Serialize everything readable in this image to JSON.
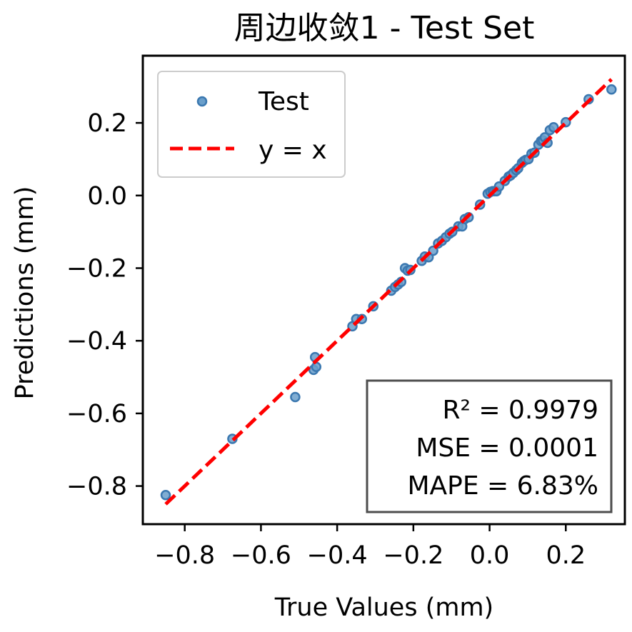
{
  "colors": {
    "points_fill": "#6a9fcb",
    "points_stroke": "#3b78b0",
    "reference_line": "#ff0000",
    "axes": "#000000",
    "legend_border": "#cccccc",
    "stats_border": "#4d4d4d"
  },
  "chart_data": {
    "type": "scatter",
    "title": "周边收敛1 - Test Set",
    "xlabel": "True Values (mm)",
    "ylabel": "Predictions (mm)",
    "xlim": [
      -0.91,
      0.355
    ],
    "ylim": [
      -0.905,
      0.385
    ],
    "xticks": [
      {
        "value": -0.8,
        "label": "−0.8"
      },
      {
        "value": -0.6,
        "label": "−0.6"
      },
      {
        "value": -0.4,
        "label": "−0.4"
      },
      {
        "value": -0.2,
        "label": "−0.2"
      },
      {
        "value": 0.0,
        "label": "0.0"
      },
      {
        "value": 0.2,
        "label": "0.2"
      }
    ],
    "yticks": [
      {
        "value": -0.8,
        "label": "−0.8"
      },
      {
        "value": -0.6,
        "label": "−0.6"
      },
      {
        "value": -0.4,
        "label": "−0.4"
      },
      {
        "value": -0.2,
        "label": "−0.2"
      },
      {
        "value": 0.0,
        "label": "0.0"
      },
      {
        "value": 0.2,
        "label": "0.2"
      }
    ],
    "grid": false,
    "legend": {
      "placement": "top-left",
      "entries": [
        {
          "label": "Test",
          "marker": "circle"
        },
        {
          "label": "y = x",
          "marker": "dashed-line"
        }
      ]
    },
    "reference_line": {
      "label": "y = x",
      "x": [
        -0.85,
        0.32
      ],
      "y": [
        -0.85,
        0.32
      ],
      "style": "dashed"
    },
    "series": [
      {
        "name": "Test",
        "points": [
          {
            "x": -0.85,
            "y": -0.825
          },
          {
            "x": -0.675,
            "y": -0.67
          },
          {
            "x": -0.51,
            "y": -0.555
          },
          {
            "x": -0.462,
            "y": -0.48
          },
          {
            "x": -0.458,
            "y": -0.445
          },
          {
            "x": -0.455,
            "y": -0.472
          },
          {
            "x": -0.36,
            "y": -0.36
          },
          {
            "x": -0.35,
            "y": -0.34
          },
          {
            "x": -0.335,
            "y": -0.34
          },
          {
            "x": -0.305,
            "y": -0.305
          },
          {
            "x": -0.258,
            "y": -0.262
          },
          {
            "x": -0.248,
            "y": -0.252
          },
          {
            "x": -0.24,
            "y": -0.245
          },
          {
            "x": -0.232,
            "y": -0.238
          },
          {
            "x": -0.222,
            "y": -0.2
          },
          {
            "x": -0.215,
            "y": -0.207
          },
          {
            "x": -0.208,
            "y": -0.205
          },
          {
            "x": -0.178,
            "y": -0.18
          },
          {
            "x": -0.17,
            "y": -0.168
          },
          {
            "x": -0.16,
            "y": -0.17
          },
          {
            "x": -0.148,
            "y": -0.152
          },
          {
            "x": -0.135,
            "y": -0.132
          },
          {
            "x": -0.125,
            "y": -0.125
          },
          {
            "x": -0.115,
            "y": -0.115
          },
          {
            "x": -0.105,
            "y": -0.105
          },
          {
            "x": -0.098,
            "y": -0.1
          },
          {
            "x": -0.082,
            "y": -0.085
          },
          {
            "x": -0.072,
            "y": -0.085
          },
          {
            "x": -0.065,
            "y": -0.065
          },
          {
            "x": -0.055,
            "y": -0.06
          },
          {
            "x": -0.025,
            "y": -0.025
          },
          {
            "x": -0.005,
            "y": 0.005
          },
          {
            "x": 0.002,
            "y": 0.01
          },
          {
            "x": 0.008,
            "y": 0.012
          },
          {
            "x": 0.012,
            "y": 0.012
          },
          {
            "x": 0.018,
            "y": 0.012
          },
          {
            "x": 0.025,
            "y": 0.025
          },
          {
            "x": 0.04,
            "y": 0.04
          },
          {
            "x": 0.05,
            "y": 0.052
          },
          {
            "x": 0.055,
            "y": 0.055
          },
          {
            "x": 0.062,
            "y": 0.062
          },
          {
            "x": 0.07,
            "y": 0.07
          },
          {
            "x": 0.075,
            "y": 0.075
          },
          {
            "x": 0.085,
            "y": 0.09
          },
          {
            "x": 0.09,
            "y": 0.095
          },
          {
            "x": 0.095,
            "y": 0.098
          },
          {
            "x": 0.102,
            "y": 0.1
          },
          {
            "x": 0.11,
            "y": 0.115
          },
          {
            "x": 0.118,
            "y": 0.118
          },
          {
            "x": 0.128,
            "y": 0.14
          },
          {
            "x": 0.135,
            "y": 0.15
          },
          {
            "x": 0.14,
            "y": 0.152
          },
          {
            "x": 0.145,
            "y": 0.16
          },
          {
            "x": 0.152,
            "y": 0.145
          },
          {
            "x": 0.158,
            "y": 0.18
          },
          {
            "x": 0.168,
            "y": 0.188
          },
          {
            "x": 0.2,
            "y": 0.202
          },
          {
            "x": 0.26,
            "y": 0.265
          },
          {
            "x": 0.32,
            "y": 0.292
          }
        ]
      }
    ],
    "annotation": {
      "placement": "bottom-right",
      "lines": [
        "R² = 0.9979",
        "MSE = 0.0001",
        "MAPE = 6.83%"
      ]
    }
  }
}
